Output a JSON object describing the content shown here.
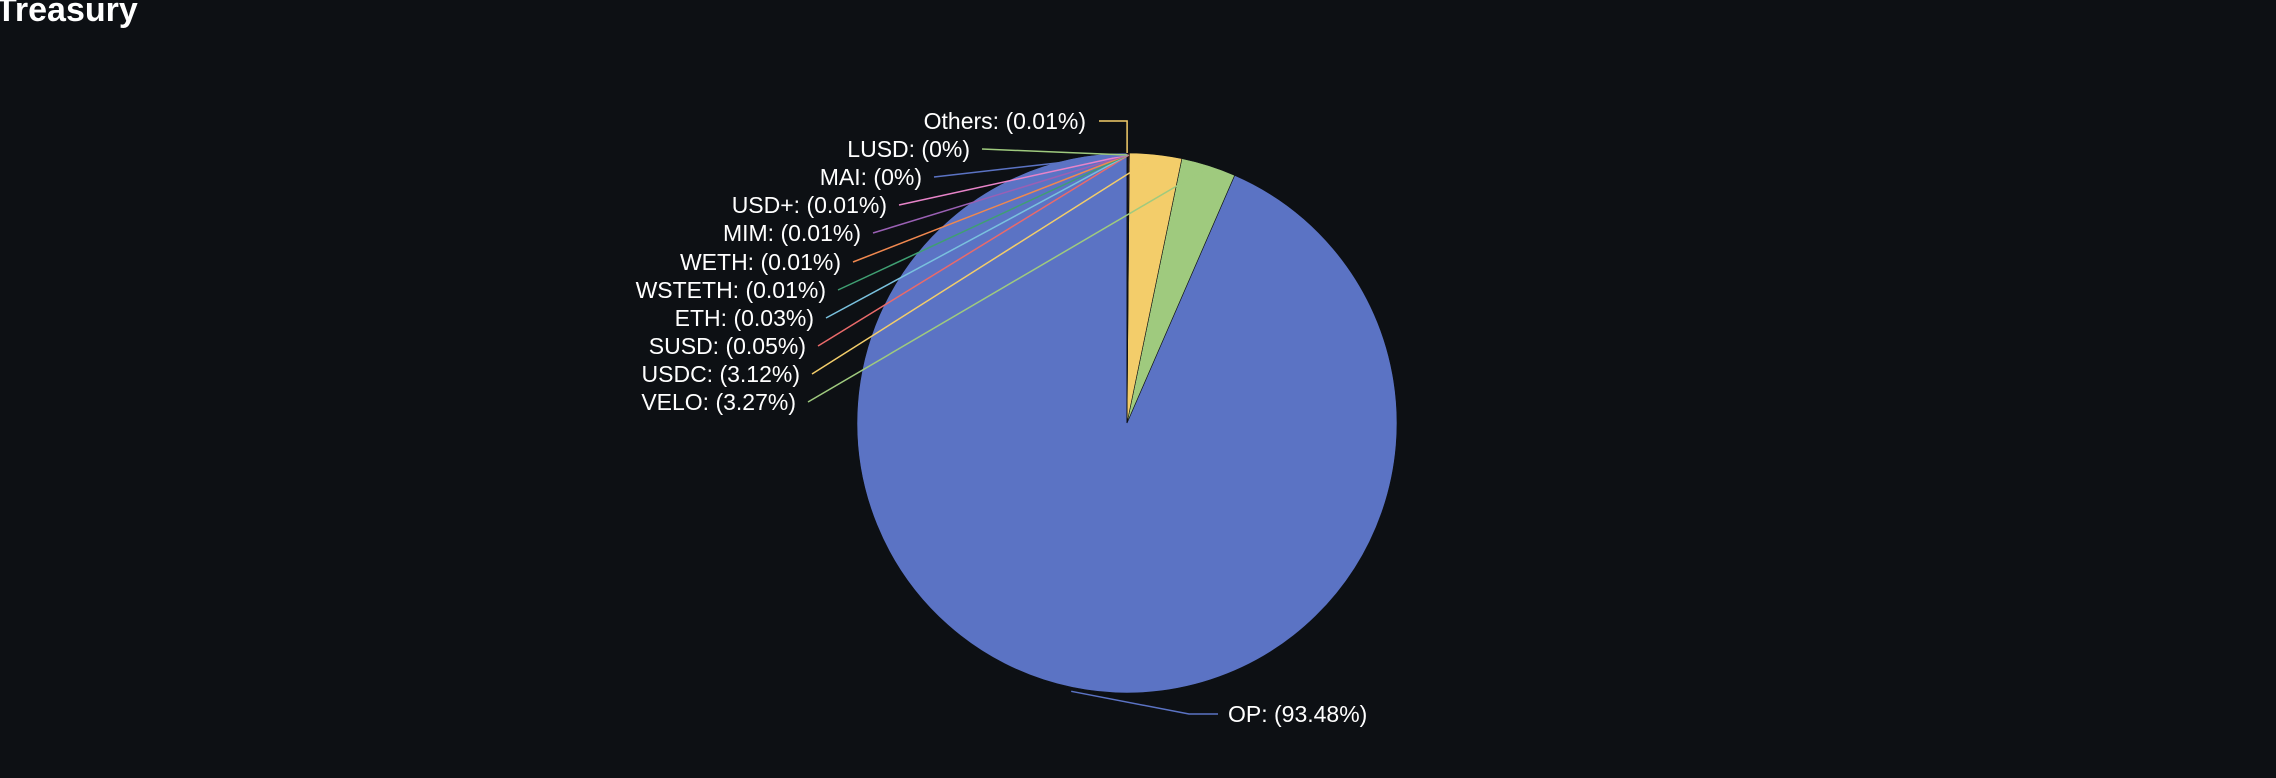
{
  "page": {
    "title": "Treasury"
  },
  "chart_data": {
    "type": "pie",
    "start_angle_deg": 0,
    "direction": "counterclockwise",
    "slices": [
      {
        "name": "OP",
        "label": "OP: (93.48%)",
        "value": 93.48,
        "color": "#5b73c4"
      },
      {
        "name": "VELO",
        "label": "VELO: (3.27%)",
        "value": 3.27,
        "color": "#9fca7e"
      },
      {
        "name": "USDC",
        "label": "USDC: (3.12%)",
        "value": 3.12,
        "color": "#f3cd6a"
      },
      {
        "name": "SUSD",
        "label": "SUSD: (0.05%)",
        "value": 0.05,
        "color": "#ea6a6a"
      },
      {
        "name": "ETH",
        "label": "ETH: (0.03%)",
        "value": 0.03,
        "color": "#79c1de"
      },
      {
        "name": "WSTETH",
        "label": "WSTETH: (0.01%)",
        "value": 0.01,
        "color": "#3f9f72"
      },
      {
        "name": "WETH",
        "label": "WETH: (0.01%)",
        "value": 0.01,
        "color": "#f0884f"
      },
      {
        "name": "MIM",
        "label": "MIM: (0.01%)",
        "value": 0.01,
        "color": "#9a60b4"
      },
      {
        "name": "USD+",
        "label": "USD+: (0.01%)",
        "value": 0.01,
        "color": "#e884c9"
      },
      {
        "name": "MAI",
        "label": "MAI: (0%)",
        "value": 0.003,
        "color": "#5b73c4"
      },
      {
        "name": "LUSD",
        "label": "LUSD: (0%)",
        "value": 0.003,
        "color": "#9fca7e"
      },
      {
        "name": "Others",
        "label": "Others: (0.01%)",
        "value": 0.01,
        "color": "#f3cd6a"
      }
    ]
  }
}
